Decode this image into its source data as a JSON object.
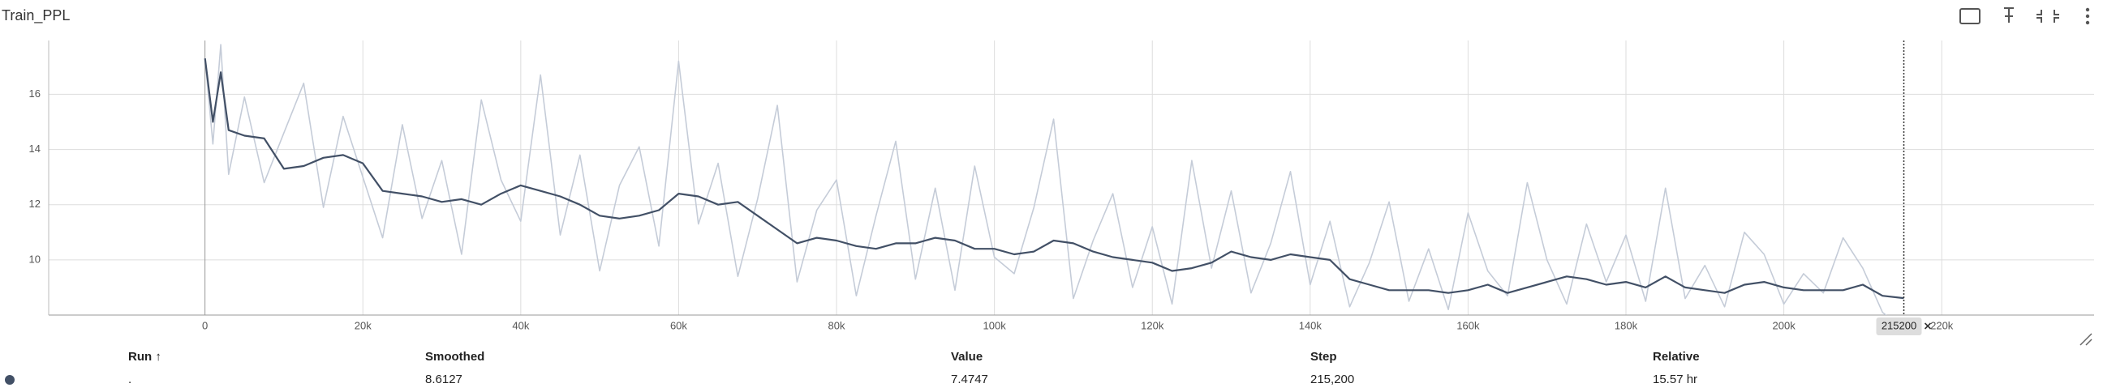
{
  "chart_data": {
    "type": "line",
    "title": "Train_PPL",
    "x": [
      0,
      1000,
      2000,
      3000,
      5000,
      7500,
      10000,
      12500,
      15000,
      17500,
      20000,
      22500,
      25000,
      27500,
      30000,
      32500,
      35000,
      37500,
      40000,
      42500,
      45000,
      47500,
      50000,
      52500,
      55000,
      57500,
      60000,
      62500,
      65000,
      67500,
      70000,
      72500,
      75000,
      77500,
      80000,
      82500,
      85000,
      87500,
      90000,
      92500,
      95000,
      97500,
      100000,
      102500,
      105000,
      107500,
      110000,
      112500,
      115000,
      117500,
      120000,
      122500,
      125000,
      127500,
      130000,
      132500,
      135000,
      137500,
      140000,
      142500,
      145000,
      147500,
      150000,
      152500,
      155000,
      157500,
      160000,
      162500,
      165000,
      167500,
      170000,
      172500,
      175000,
      177500,
      180000,
      182500,
      185000,
      187500,
      190000,
      192500,
      195000,
      197500,
      200000,
      202500,
      205000,
      207500,
      210000,
      212500,
      215200
    ],
    "series": [
      {
        "color": "#c5ccd8",
        "values": [
          17.3,
          14.2,
          17.8,
          13.1,
          15.9,
          12.8,
          14.6,
          16.4,
          11.9,
          15.2,
          13.0,
          10.8,
          14.9,
          11.5,
          13.6,
          10.2,
          15.8,
          12.9,
          11.4,
          16.7,
          10.9,
          13.8,
          9.6,
          12.7,
          14.1,
          10.5,
          17.2,
          11.3,
          13.5,
          9.4,
          12.2,
          15.6,
          9.2,
          11.8,
          12.9,
          8.7,
          11.6,
          14.3,
          9.3,
          12.6,
          8.9,
          13.4,
          10.1,
          9.5,
          11.9,
          15.1,
          8.6,
          10.7,
          12.4,
          9.0,
          11.2,
          8.4,
          13.6,
          9.7,
          12.5,
          8.8,
          10.6,
          13.2,
          9.1,
          11.4,
          8.3,
          9.9,
          12.1,
          8.5,
          10.4,
          8.2,
          11.7,
          9.6,
          8.7,
          12.8,
          10.0,
          8.4,
          11.3,
          9.2,
          10.9,
          8.5,
          12.6,
          8.6,
          9.8,
          8.3,
          11.0,
          10.2,
          8.4,
          9.5,
          8.8,
          10.8,
          9.7,
          8.1,
          7.4747
        ]
      },
      {
        "color": "#425066",
        "values": [
          17.3,
          15.0,
          16.8,
          14.7,
          14.5,
          14.4,
          13.3,
          13.4,
          13.7,
          13.8,
          13.5,
          12.5,
          12.4,
          12.3,
          12.1,
          12.2,
          12.0,
          12.4,
          12.7,
          12.5,
          12.3,
          12.0,
          11.6,
          11.5,
          11.6,
          11.8,
          12.4,
          12.3,
          12.0,
          12.1,
          11.6,
          11.1,
          10.6,
          10.8,
          10.7,
          10.5,
          10.4,
          10.6,
          10.6,
          10.8,
          10.7,
          10.4,
          10.4,
          10.2,
          10.3,
          10.7,
          10.6,
          10.3,
          10.1,
          10.0,
          9.9,
          9.6,
          9.7,
          9.9,
          10.3,
          10.1,
          10.0,
          10.2,
          10.1,
          10.0,
          9.3,
          9.1,
          8.9,
          8.9,
          8.9,
          8.8,
          8.9,
          9.1,
          8.8,
          9.0,
          9.2,
          9.4,
          9.3,
          9.1,
          9.2,
          9.0,
          9.4,
          9.0,
          8.9,
          8.8,
          9.1,
          9.2,
          9.0,
          8.9,
          8.9,
          8.9,
          9.1,
          8.7,
          8.6127
        ]
      }
    ],
    "xlim": [
      -19800,
      239300
    ],
    "xticks": [
      0,
      {
        "value": 20000,
        "label": "20k"
      },
      {
        "value": 40000,
        "label": "40k"
      },
      {
        "value": 60000,
        "label": "60k"
      },
      {
        "value": 80000,
        "label": "80k"
      },
      {
        "value": 100000,
        "label": "100k"
      },
      {
        "value": 120000,
        "label": "120k"
      },
      {
        "value": 140000,
        "label": "140k"
      },
      {
        "value": 160000,
        "label": "160k"
      },
      {
        "value": 180000,
        "label": "180k"
      },
      {
        "value": 200000,
        "label": "200k"
      },
      {
        "value": 220000,
        "label": "220k"
      }
    ],
    "ylim": [
      8,
      17.95
    ],
    "yticks": [
      10,
      12,
      14,
      16
    ],
    "grid": true,
    "cursor_x": 215200
  },
  "table": {
    "columns": [
      "Run ↑",
      "Smoothed",
      "Value",
      "Step",
      "Relative"
    ],
    "rows": [
      [
        ".",
        "8.6127",
        "7.4747",
        "215,200",
        "15.57 hr"
      ]
    ]
  }
}
